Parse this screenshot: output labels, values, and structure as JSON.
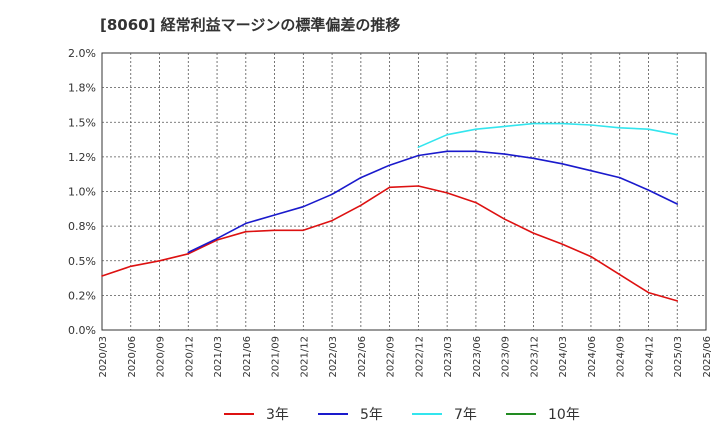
{
  "chart_data": {
    "type": "line",
    "title": "[8060]  経常利益マージンの標準偏差の推移",
    "xlabel": "",
    "ylabel": "",
    "ylim": [
      0,
      2.0
    ],
    "ytick_labels": [
      "0.0%",
      "0.2%",
      "0.5%",
      "0.8%",
      "1.0%",
      "1.2%",
      "1.5%",
      "1.8%",
      "2.0%"
    ],
    "grid": true,
    "legend_position": "bottom",
    "x": [
      "2020/03",
      "2020/06",
      "2020/09",
      "2020/12",
      "2021/03",
      "2021/06",
      "2021/09",
      "2021/12",
      "2022/03",
      "2022/06",
      "2022/09",
      "2022/12",
      "2023/03",
      "2023/06",
      "2023/09",
      "2023/12",
      "2024/03",
      "2024/06",
      "2024/09",
      "2024/12",
      "2025/03",
      "2025/06"
    ],
    "series": [
      {
        "name": "3年",
        "color": "#dd1111",
        "values": [
          0.39,
          0.46,
          0.5,
          0.55,
          0.65,
          0.71,
          0.72,
          0.72,
          0.79,
          0.9,
          1.03,
          1.04,
          0.99,
          0.92,
          0.8,
          0.7,
          0.62,
          0.53,
          0.4,
          0.27,
          0.21,
          null
        ]
      },
      {
        "name": "5年",
        "color": "#1a1acc",
        "values": [
          null,
          null,
          null,
          0.56,
          0.66,
          0.77,
          0.83,
          0.89,
          0.98,
          1.1,
          1.19,
          1.26,
          1.29,
          1.29,
          1.27,
          1.24,
          1.2,
          1.15,
          1.1,
          1.01,
          0.91,
          null
        ]
      },
      {
        "name": "7年",
        "color": "#33e5ee",
        "values": [
          null,
          null,
          null,
          null,
          null,
          null,
          null,
          null,
          null,
          null,
          null,
          1.32,
          1.41,
          1.45,
          1.47,
          1.49,
          1.49,
          1.48,
          1.46,
          1.45,
          1.41,
          null
        ]
      },
      {
        "name": "10年",
        "color": "#228b22",
        "values": [
          null,
          null,
          null,
          null,
          null,
          null,
          null,
          null,
          null,
          null,
          null,
          null,
          null,
          null,
          null,
          null,
          null,
          null,
          null,
          null,
          null,
          null
        ]
      }
    ]
  }
}
